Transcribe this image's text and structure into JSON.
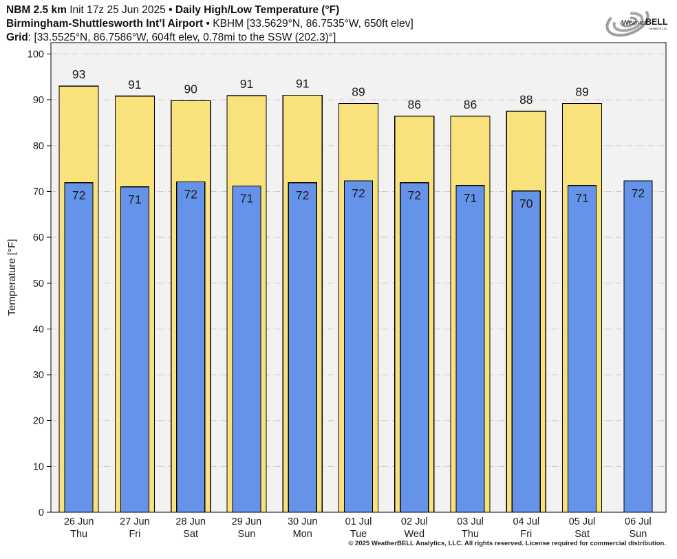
{
  "header": {
    "line1_model": "NBM 2.5 km",
    "line1_init": "Init 17z 25 Jun 2025",
    "line1_sep": "•",
    "line1_product": "Daily High/Low Temperature (°F)",
    "line2_station": "Birmingham-Shuttlesworth Int’l Airport",
    "line2_sep": "•",
    "line2_details": "KBHM [33.5629°N, 86.7535°W, 650ft elev]",
    "line3_label": "Grid",
    "line3_details": ": [33.5525°N, 86.7586°W, 604ft elev, 0.78mi to the SSW (202.3)°]"
  },
  "logo": {
    "part1": "Weather",
    "part2": "BELL",
    "subtext": "Analytics LLC"
  },
  "footer": {
    "copyright": "© 2025 WeatherBELL Analytics, LLC. All rights reserved. License required for commercial distribution."
  },
  "chart_data": {
    "type": "bar",
    "title": "Daily High/Low Temperature (°F)",
    "ylabel": "Temperature [°F]",
    "ylim": [
      0,
      102.4
    ],
    "yticks": [
      0,
      10,
      20,
      30,
      40,
      50,
      60,
      70,
      80,
      90,
      100
    ],
    "grid": "horizontal dash-dot",
    "legend_position": "none",
    "categories_date": [
      "26 Jun",
      "27 Jun",
      "28 Jun",
      "29 Jun",
      "30 Jun",
      "01 Jul",
      "02 Jul",
      "03 Jul",
      "04 Jul",
      "05 Jul",
      "06 Jul"
    ],
    "categories_weekday": [
      "Thu",
      "Fri",
      "Sat",
      "Sun",
      "Mon",
      "Tue",
      "Wed",
      "Thu",
      "Fri",
      "Sat",
      "Sun"
    ],
    "series": [
      {
        "name": "High",
        "color": "#f9e27b",
        "values": [
          93.0,
          90.8,
          89.8,
          90.9,
          91.0,
          89.2,
          86.4,
          86.4,
          87.5,
          89.2,
          null
        ],
        "labels": [
          "93",
          "91",
          "90",
          "91",
          "91",
          "89",
          "86",
          "86",
          "88",
          "89",
          null
        ]
      },
      {
        "name": "Low",
        "color": "#6493e9",
        "values": [
          71.9,
          71.0,
          72.1,
          71.2,
          71.9,
          72.3,
          71.9,
          71.3,
          70.1,
          71.3,
          72.3
        ],
        "labels": [
          "72",
          "71",
          "72",
          "71",
          "72",
          "72",
          "72",
          "71",
          "70",
          "71",
          "72"
        ]
      }
    ],
    "plot_bg": "#f2f2f2",
    "grid_color": "#c9c9c9",
    "bar_border_color": "#000000"
  }
}
